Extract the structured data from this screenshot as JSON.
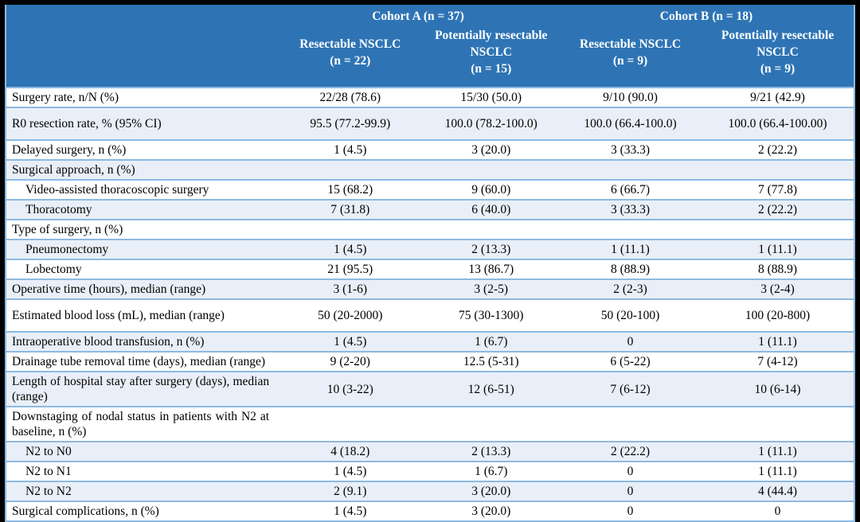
{
  "colors": {
    "header_bg": "#2E74B5",
    "header_text": "#FFFFFF",
    "row_stripe": "#E9EFF8",
    "row_border": "#8EB9E0",
    "outer_frame": "#000000",
    "body_text": "#000000"
  },
  "header": {
    "groups": [
      {
        "label": "Cohort A (n = 37)"
      },
      {
        "label": "Cohort B (n = 18)"
      }
    ],
    "columns": [
      {
        "name": "Resectable NSCLC",
        "n": "(n = 22)"
      },
      {
        "name": "Potentially resectable NSCLC",
        "n": "(n = 15)"
      },
      {
        "name": "Resectable NSCLC",
        "n": "(n = 9)"
      },
      {
        "name": "Potentially resectable NSCLC",
        "n": "(n = 9)"
      }
    ]
  },
  "rows": [
    {
      "label": "Surgery rate, n/N (%)",
      "indent": false,
      "tall": false,
      "values": [
        "22/28 (78.6)",
        "15/30 (50.0)",
        "9/10 (90.0)",
        "9/21 (42.9)"
      ]
    },
    {
      "label": "R0 resection rate, % (95% CI)",
      "indent": false,
      "tall": true,
      "values": [
        "95.5 (77.2-99.9)",
        "100.0 (78.2-100.0)",
        "100.0 (66.4-100.0)",
        "100.0 (66.4-100.00)"
      ]
    },
    {
      "label": "Delayed surgery, n (%)",
      "indent": false,
      "tall": false,
      "values": [
        "1 (4.5)",
        "3 (20.0)",
        "3 (33.3)",
        "2 (22.2)"
      ]
    },
    {
      "label": "Surgical approach, n (%)",
      "indent": false,
      "tall": false,
      "values": [
        "",
        "",
        "",
        ""
      ]
    },
    {
      "label": "Video-assisted thoracoscopic surgery",
      "indent": true,
      "tall": false,
      "values": [
        "15 (68.2)",
        "9 (60.0)",
        "6 (66.7)",
        "7 (77.8)"
      ]
    },
    {
      "label": "Thoracotomy",
      "indent": true,
      "tall": false,
      "values": [
        "7 (31.8)",
        "6 (40.0)",
        "3 (33.3)",
        "2 (22.2)"
      ]
    },
    {
      "label": "Type of surgery, n (%)",
      "indent": false,
      "tall": false,
      "values": [
        "",
        "",
        "",
        ""
      ]
    },
    {
      "label": "Pneumonectomy",
      "indent": true,
      "tall": false,
      "values": [
        "1 (4.5)",
        "2 (13.3)",
        "1 (11.1)",
        "1 (11.1)"
      ]
    },
    {
      "label": "Lobectomy",
      "indent": true,
      "tall": false,
      "values": [
        "21 (95.5)",
        "13 (86.7)",
        "8 (88.9)",
        "8 (88.9)"
      ]
    },
    {
      "label": "Operative time (hours), median (range)",
      "indent": false,
      "tall": false,
      "values": [
        "3 (1-6)",
        "3 (2-5)",
        "2 (2-3)",
        "3 (2-4)"
      ]
    },
    {
      "label": "Estimated blood loss (mL), median (range)",
      "indent": false,
      "tall": true,
      "values": [
        "50 (20-2000)",
        "75 (30-1300)",
        "50 (20-100)",
        "100 (20-800)"
      ]
    },
    {
      "label": "Intraoperative blood transfusion, n (%)",
      "indent": false,
      "tall": false,
      "values": [
        "1 (4.5)",
        "1 (6.7)",
        "0",
        "1 (11.1)"
      ]
    },
    {
      "label": "Drainage tube removal time (days), median (range)",
      "indent": false,
      "tall": false,
      "values": [
        "9 (2-20)",
        "12.5 (5-31)",
        "6 (5-22)",
        "7 (4-12)"
      ]
    },
    {
      "label": "Length of hospital stay after surgery (days), median (range)",
      "indent": false,
      "tall": false,
      "values": [
        "10 (3-22)",
        "12 (6-51)",
        "7 (6-12)",
        "10 (6-14)"
      ]
    },
    {
      "label": "Downstaging of nodal status in patients with N2 at baseline, n (%)",
      "indent": false,
      "tall": false,
      "values": [
        "",
        "",
        "",
        ""
      ]
    },
    {
      "label": "N2 to N0",
      "indent": true,
      "tall": false,
      "values": [
        "4 (18.2)",
        "2 (13.3)",
        "2 (22.2)",
        "1 (11.1)"
      ]
    },
    {
      "label": "N2 to N1",
      "indent": true,
      "tall": false,
      "values": [
        "1 (4.5)",
        "1 (6.7)",
        "0",
        "1 (11.1)"
      ]
    },
    {
      "label": "N2 to N2",
      "indent": true,
      "tall": false,
      "values": [
        "2 (9.1)",
        "3 (20.0)",
        "0",
        "4 (44.4)"
      ]
    },
    {
      "label": "Surgical complications, n (%)",
      "indent": false,
      "tall": false,
      "values": [
        "1 (4.5)",
        "3 (20.0)",
        "0",
        "0"
      ]
    }
  ]
}
